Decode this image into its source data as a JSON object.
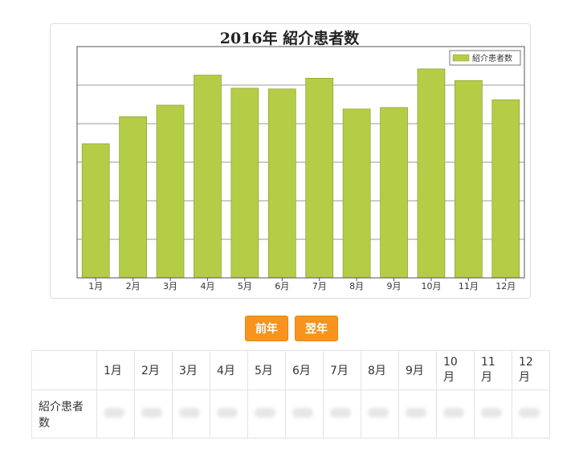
{
  "chart_data": {
    "type": "bar",
    "title": "2016年 紹介患者数",
    "categories": [
      "1月",
      "2月",
      "3月",
      "4月",
      "5月",
      "6月",
      "7月",
      "8月",
      "9月",
      "10月",
      "11月",
      "12月"
    ],
    "series": [
      {
        "name": "紹介患者数",
        "values": [
          3.48,
          4.18,
          4.48,
          5.26,
          4.92,
          4.9,
          5.18,
          4.38,
          4.42,
          5.42,
          5.12,
          4.62
        ]
      }
    ],
    "ylim": [
      0,
      6
    ],
    "y_ticks_labeled": false,
    "grid": true,
    "legend": "top-right",
    "bar_color": "#b5cc47"
  },
  "nav": {
    "prev_label": "前年",
    "next_label": "翌年"
  },
  "table": {
    "row_label": "紹介患者数",
    "months": [
      "1月",
      "2月",
      "3月",
      "4月",
      "5月",
      "6月",
      "7月",
      "8月",
      "9月",
      "10月",
      "11月",
      "12月"
    ]
  },
  "colors": {
    "button": "#f7931e",
    "bar": "#b5cc47"
  }
}
